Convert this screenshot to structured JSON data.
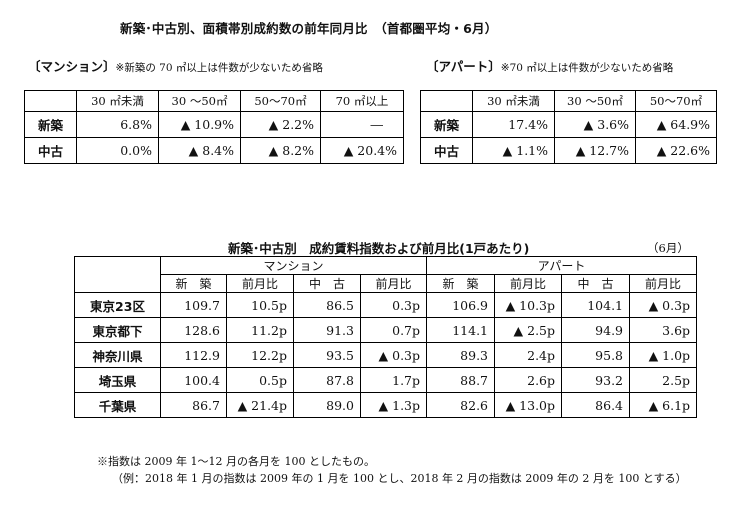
{
  "title": "新築･中古別、面積帯別成約数の前年同月比　（首都圏平均・6月）",
  "mansion": {
    "caption": "〔マンション〕",
    "note": "※新築の 70 ㎡以上は件数が少ないため省略",
    "headers": [
      "",
      "30 ㎡未満",
      "30 ～50㎡",
      "50～70㎡",
      "70 ㎡以上"
    ],
    "rows": [
      {
        "label": "新築",
        "cells": [
          "6.8%",
          "▲ 10.9%",
          "▲ 2.2%",
          "―"
        ]
      },
      {
        "label": "中古",
        "cells": [
          "0.0%",
          "▲ 8.4%",
          "▲ 8.2%",
          "▲ 20.4%"
        ]
      }
    ]
  },
  "apart": {
    "caption": "〔アパート〕",
    "note": "※70 ㎡以上は件数が少ないため省略",
    "headers": [
      "",
      "30 ㎡未満",
      "30 ～50㎡",
      "50～70㎡"
    ],
    "rows": [
      {
        "label": "新築",
        "cells": [
          "17.4%",
          "▲ 3.6%",
          "▲ 64.9%"
        ]
      },
      {
        "label": "中古",
        "cells": [
          "▲ 1.1%",
          "▲ 12.7%",
          "▲ 22.6%"
        ]
      }
    ]
  },
  "index_table": {
    "title": "新築･中古別　成約賃料指数および前月比(1戸あたり)",
    "month": "（6月）",
    "group_headers": [
      "マンション",
      "アパート"
    ],
    "sub_headers": [
      "新　築",
      "前月比",
      "中　古",
      "前月比",
      "新　築",
      "前月比",
      "中　古",
      "前月比"
    ],
    "rows": [
      {
        "label": "東京23区",
        "cells": [
          "109.7",
          "10.5p",
          "86.5",
          "0.3p",
          "106.9",
          "▲ 10.3p",
          "104.1",
          "▲ 0.3p"
        ]
      },
      {
        "label": "東京都下",
        "cells": [
          "128.6",
          "11.2p",
          "91.3",
          "0.7p",
          "114.1",
          "▲ 2.5p",
          "94.9",
          "3.6p"
        ]
      },
      {
        "label": "神奈川県",
        "cells": [
          "112.9",
          "12.2p",
          "93.5",
          "▲ 0.3p",
          "89.3",
          "2.4p",
          "95.8",
          "▲ 1.0p"
        ]
      },
      {
        "label": "埼玉県",
        "cells": [
          "100.4",
          "0.5p",
          "87.8",
          "1.7p",
          "88.7",
          "2.6p",
          "93.2",
          "2.5p"
        ]
      },
      {
        "label": "千葉県",
        "cells": [
          "86.7",
          "▲ 21.4p",
          "89.0",
          "▲ 1.3p",
          "82.6",
          "▲ 13.0p",
          "86.4",
          "▲ 6.1p"
        ]
      }
    ]
  },
  "footnotes": [
    "※指数は 2009 年 1～12 月の各月を 100 としたもの。",
    "（例：2018 年 1 月の指数は 2009 年の 1 月を 100 とし、2018 年 2 月の指数は 2009 年の 2 月を 100 とする）"
  ]
}
